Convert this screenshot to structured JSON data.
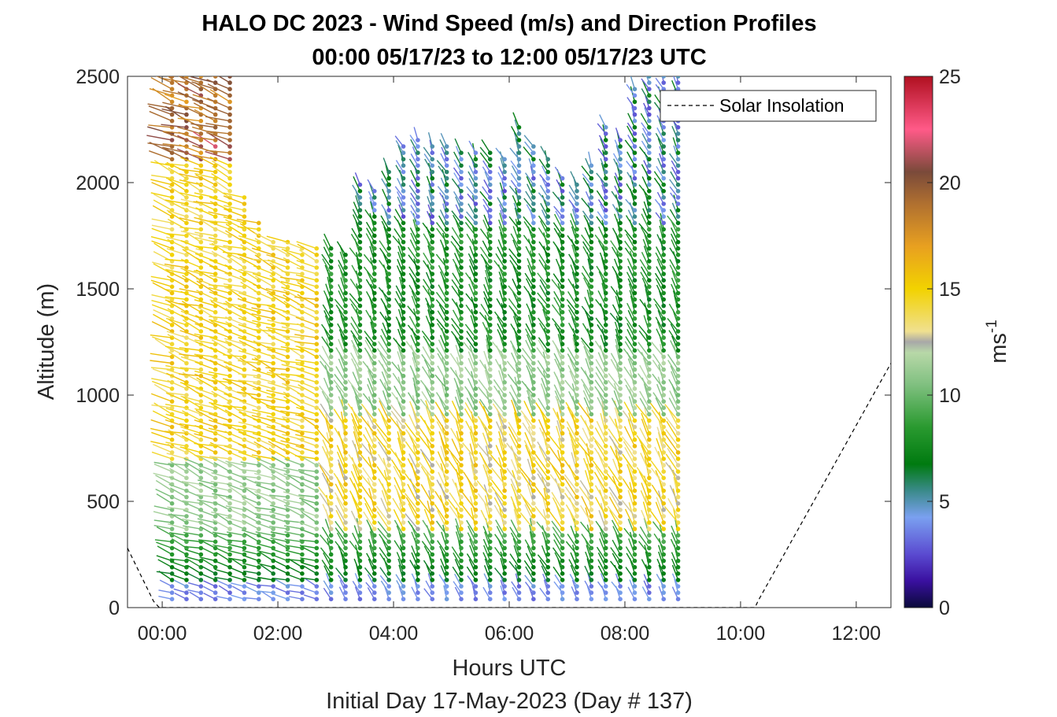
{
  "chart_data": {
    "type": "scatter",
    "title": "HALO DC 2023 - Wind Speed (m/s) and Direction Profiles",
    "subtitle": "00:00 05/17/23 to 12:00 05/17/23  UTC",
    "xlabel": "Hours UTC",
    "x_sublabel": "Initial Day 17-May-2023 (Day # 137)",
    "ylabel": "Altitude (m)",
    "colorbar_label": "ms",
    "colorbar_label_exp": "-1",
    "xlim": [
      -0.6,
      12.6
    ],
    "ylim": [
      0,
      2500
    ],
    "x_ticks": [
      0,
      2,
      4,
      6,
      8,
      10,
      12
    ],
    "x_tick_labels": [
      "00:00",
      "02:00",
      "04:00",
      "06:00",
      "08:00",
      "10:00",
      "12:00"
    ],
    "y_ticks": [
      0,
      500,
      1000,
      1500,
      2000,
      2500
    ],
    "y_tick_labels": [
      "0",
      "500",
      "1000",
      "1500",
      "2000",
      "2500"
    ],
    "colorbar_range": [
      0,
      25
    ],
    "colorbar_ticks": [
      0,
      5,
      10,
      15,
      20,
      25
    ],
    "colorbar_tick_labels": [
      "0",
      "5",
      "10",
      "15",
      "20",
      "25"
    ],
    "legend": {
      "label": "Solar Insolation",
      "placement": "top-right"
    },
    "solar_insolation": {
      "x": [
        -0.6,
        -0.15,
        -0.05,
        10.25,
        10.3,
        12.6
      ],
      "y": [
        280,
        30,
        0,
        0,
        30,
        1150
      ]
    },
    "wind_profiles": [
      {
        "hour": 0.17,
        "alt_range": [
          40,
          2500
        ]
      },
      {
        "hour": 0.42,
        "alt_range": [
          40,
          2500
        ]
      },
      {
        "hour": 0.67,
        "alt_range": [
          40,
          2500
        ]
      },
      {
        "hour": 0.92,
        "alt_range": [
          40,
          2500
        ]
      },
      {
        "hour": 1.17,
        "alt_range": [
          40,
          2500
        ]
      },
      {
        "hour": 1.42,
        "alt_range": [
          40,
          1950
        ]
      },
      {
        "hour": 1.67,
        "alt_range": [
          40,
          1820
        ]
      },
      {
        "hour": 1.92,
        "alt_range": [
          40,
          1740
        ]
      },
      {
        "hour": 2.17,
        "alt_range": [
          40,
          1730
        ]
      },
      {
        "hour": 2.42,
        "alt_range": [
          40,
          1700
        ]
      },
      {
        "hour": 2.67,
        "alt_range": [
          40,
          1700
        ]
      },
      {
        "hour": 2.92,
        "alt_range": [
          40,
          1690
        ]
      },
      {
        "hour": 3.17,
        "alt_range": [
          40,
          1680
        ]
      },
      {
        "hour": 3.42,
        "alt_range": [
          40,
          2010
        ]
      },
      {
        "hour": 3.67,
        "alt_range": [
          40,
          1980
        ]
      },
      {
        "hour": 3.92,
        "alt_range": [
          40,
          2050
        ]
      },
      {
        "hour": 4.17,
        "alt_range": [
          40,
          2180
        ]
      },
      {
        "hour": 4.42,
        "alt_range": [
          40,
          2200
        ]
      },
      {
        "hour": 4.67,
        "alt_range": [
          40,
          2180
        ]
      },
      {
        "hour": 4.92,
        "alt_range": [
          40,
          2180
        ]
      },
      {
        "hour": 5.17,
        "alt_range": [
          40,
          2150
        ]
      },
      {
        "hour": 5.42,
        "alt_range": [
          40,
          2140
        ]
      },
      {
        "hour": 5.67,
        "alt_range": [
          40,
          2150
        ]
      },
      {
        "hour": 5.92,
        "alt_range": [
          40,
          2120
        ]
      },
      {
        "hour": 6.17,
        "alt_range": [
          40,
          2280
        ]
      },
      {
        "hour": 6.42,
        "alt_range": [
          40,
          2180
        ]
      },
      {
        "hour": 6.67,
        "alt_range": [
          40,
          2120
        ]
      },
      {
        "hour": 6.92,
        "alt_range": [
          40,
          2040
        ]
      },
      {
        "hour": 7.17,
        "alt_range": [
          40,
          2000
        ]
      },
      {
        "hour": 7.42,
        "alt_range": [
          40,
          2100
        ]
      },
      {
        "hour": 7.67,
        "alt_range": [
          40,
          2280
        ]
      },
      {
        "hour": 7.92,
        "alt_range": [
          40,
          2210
        ]
      },
      {
        "hour": 8.17,
        "alt_range": [
          40,
          2450
        ]
      },
      {
        "hour": 8.42,
        "alt_range": [
          40,
          2500
        ]
      },
      {
        "hour": 8.67,
        "alt_range": [
          40,
          2500
        ]
      },
      {
        "hour": 8.92,
        "alt_range": [
          40,
          2500
        ]
      }
    ]
  }
}
